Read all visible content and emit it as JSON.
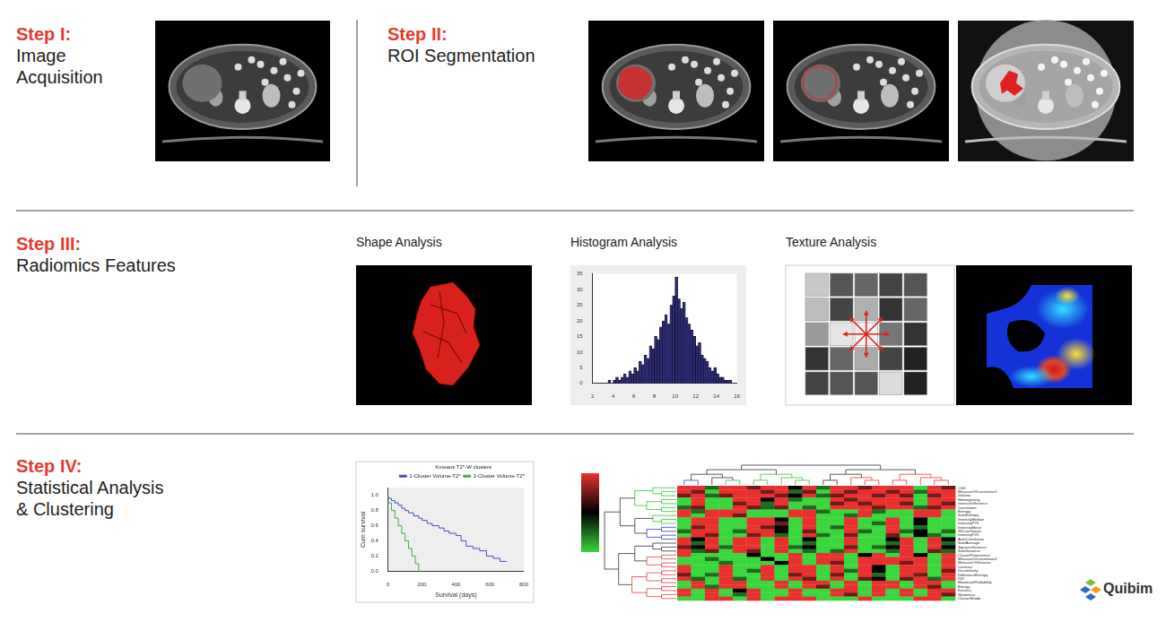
{
  "steps": [
    {
      "label": "Step I:",
      "title": [
        "Image",
        "Acquisition"
      ]
    },
    {
      "label": "Step II:",
      "title": [
        "ROI Segmentation"
      ]
    },
    {
      "label": "Step III:",
      "title": [
        "Radiomics Features"
      ]
    },
    {
      "label": "Step IV:",
      "title": [
        "Statistical Analysis",
        "& Clustering"
      ]
    }
  ],
  "feature_panels": [
    "Shape Analysis",
    "Histogram Analysis",
    "Texture Analysis"
  ],
  "chart_data": [
    {
      "type": "histogram",
      "bins": [
        3.5,
        3.75,
        4,
        4.25,
        4.5,
        4.75,
        5,
        5.25,
        5.5,
        5.75,
        6,
        6.25,
        6.5,
        6.75,
        7,
        7.25,
        7.5,
        7.75,
        8,
        8.25,
        8.5,
        8.75,
        9,
        9.25,
        9.5,
        9.75,
        10,
        10.25,
        10.5,
        10.75,
        11,
        11.25,
        11.5,
        11.75,
        12,
        12.25,
        12.5,
        12.75,
        13,
        13.25,
        13.5,
        13.75,
        14,
        14.25,
        14.5,
        14.75,
        15,
        15.25,
        15.5
      ],
      "counts": [
        1,
        0,
        1,
        2,
        1,
        2,
        3,
        2,
        4,
        3,
        5,
        4,
        7,
        6,
        9,
        8,
        12,
        11,
        15,
        14,
        18,
        20,
        22,
        19,
        25,
        28,
        34,
        27,
        24,
        26,
        21,
        19,
        17,
        15,
        12,
        13,
        9,
        8,
        7,
        5,
        4,
        5,
        3,
        2,
        2,
        1,
        1,
        1
      ],
      "color": "#2b2a72",
      "xlim": [
        2,
        16
      ],
      "xticks": [
        2,
        4,
        6,
        8,
        10,
        12,
        14,
        16
      ],
      "ylim": [
        0,
        35
      ],
      "yticks": [
        0,
        5,
        10,
        15,
        20,
        25,
        30,
        35
      ],
      "grid": false
    },
    {
      "type": "line",
      "title": "Kmeans T2*-W clusters",
      "x_label": "Survival (days)",
      "y_label": "Cum survival",
      "series": [
        {
          "name": "1-Cluster Volume-T2*",
          "color": "#4b4bc8",
          "line_style": "step",
          "marker": "none",
          "x": [
            0,
            20,
            40,
            60,
            80,
            100,
            120,
            150,
            180,
            200,
            230,
            260,
            300,
            330,
            360,
            400,
            430,
            460,
            500,
            540,
            580,
            620,
            660,
            700
          ],
          "values": [
            1,
            0.96,
            0.93,
            0.9,
            0.87,
            0.83,
            0.8,
            0.77,
            0.73,
            0.7,
            0.67,
            0.63,
            0.6,
            0.57,
            0.53,
            0.5,
            0.47,
            0.4,
            0.33,
            0.3,
            0.27,
            0.2,
            0.17,
            0.13
          ]
        },
        {
          "name": "2-Cluster Volume-T2*",
          "color": "#3cae3c",
          "line_style": "step",
          "marker": "none",
          "x": [
            0,
            20,
            40,
            60,
            80,
            100,
            120,
            140,
            160,
            180,
            200
          ],
          "values": [
            1,
            0.9,
            0.8,
            0.7,
            0.6,
            0.5,
            0.4,
            0.3,
            0.2,
            0.1,
            0
          ]
        }
      ],
      "xlim": [
        0,
        800
      ],
      "xticks": [
        0,
        200,
        400,
        600,
        800
      ],
      "ylim": [
        0,
        1.1
      ],
      "yticks": [
        {
          "value": 0,
          "label": "0.0"
        },
        {
          "value": 0.2,
          "label": "0.2"
        },
        {
          "value": 0.4,
          "label": "0.4"
        },
        {
          "value": 0.6,
          "label": "0.6"
        },
        {
          "value": 0.8,
          "label": "0.8"
        },
        {
          "value": 1,
          "label": "1.0"
        }
      ],
      "grid": false,
      "legend": "top-right"
    }
  ],
  "heatmap": {
    "rows": [
      "CSD",
      "MeasureOfCorrelation1",
      "Volume",
      "Homogeneity",
      "InverseDifference",
      "Correlation",
      "Entropy",
      "SumEntropy",
      "IntensityMedian",
      "IntensityP75",
      "IntensityMean",
      "3DCorrelation",
      "IntensityP25",
      "AutoCorrelation",
      "SumAverage",
      "SquaresVariance",
      "SumVariance",
      "ClusterProminence",
      "MeasureOfCorrelation2",
      "MeasureOfVariance",
      "Contrast",
      "Dissimilarity",
      "DifferenceEntropy",
      "IVD",
      "MaximumProbability",
      "Energy",
      "Kurtosis",
      "Skewness",
      "ClusterShade"
    ],
    "cells": [
      [
        2,
        2,
        -1,
        2,
        2,
        1,
        2,
        2,
        0,
        2,
        -1,
        2,
        2,
        1,
        2,
        2,
        2,
        -2,
        2,
        1
      ],
      [
        2,
        1,
        -2,
        2,
        2,
        2,
        1,
        2,
        -1,
        1,
        -2,
        2,
        1,
        2,
        2,
        1,
        2,
        -1,
        2,
        2
      ],
      [
        1,
        2,
        -1,
        1,
        2,
        2,
        2,
        1,
        0,
        2,
        -1,
        1,
        2,
        2,
        1,
        2,
        1,
        -2,
        1,
        2
      ],
      [
        -2,
        2,
        -2,
        -2,
        2,
        2,
        0,
        2,
        -1,
        -2,
        -2,
        2,
        1,
        2,
        2,
        2,
        2,
        -2,
        2,
        2
      ],
      [
        -2,
        2,
        -2,
        -2,
        1,
        2,
        -1,
        2,
        -2,
        -2,
        -2,
        1,
        2,
        1,
        2,
        2,
        1,
        -2,
        2,
        1
      ],
      [
        -1,
        1,
        -2,
        -2,
        2,
        1,
        -1,
        1,
        -2,
        -1,
        -2,
        2,
        2,
        2,
        1,
        2,
        2,
        -1,
        1,
        2
      ],
      [
        2,
        -1,
        2,
        2,
        2,
        -2,
        -2,
        -2,
        2,
        2,
        -1,
        -2,
        -2,
        2,
        -1,
        -2,
        -2,
        2,
        2,
        -2
      ],
      [
        2,
        -2,
        2,
        2,
        1,
        -2,
        -2,
        -2,
        2,
        2,
        -2,
        -2,
        -1,
        2,
        -2,
        -2,
        -2,
        2,
        2,
        -2
      ],
      [
        -2,
        2,
        2,
        -2,
        -2,
        2,
        2,
        0,
        -2,
        2,
        -2,
        -2,
        2,
        -2,
        -2,
        2,
        -2,
        0,
        -2,
        -2
      ],
      [
        -2,
        2,
        2,
        -2,
        -2,
        2,
        2,
        1,
        -2,
        2,
        -2,
        -2,
        2,
        -2,
        -1,
        2,
        -2,
        0,
        -2,
        -2
      ],
      [
        -2,
        1,
        2,
        -2,
        -2,
        2,
        1,
        0,
        -2,
        2,
        -2,
        -1,
        2,
        -2,
        -2,
        2,
        -2,
        -1,
        -2,
        -2
      ],
      [
        -1,
        2,
        2,
        -2,
        -1,
        2,
        2,
        0,
        -2,
        1,
        -2,
        -2,
        2,
        -1,
        -2,
        2,
        -1,
        0,
        -2,
        -1
      ],
      [
        -2,
        2,
        1,
        -2,
        -2,
        1,
        2,
        -1,
        -2,
        2,
        -1,
        -2,
        1,
        -2,
        -2,
        1,
        -2,
        0,
        -1,
        -2
      ],
      [
        2,
        0,
        2,
        -2,
        2,
        2,
        -2,
        2,
        -2,
        0,
        -2,
        -2,
        2,
        -2,
        -2,
        0,
        2,
        -2,
        2,
        0
      ],
      [
        2,
        -1,
        2,
        -2,
        2,
        2,
        -2,
        2,
        -2,
        -1,
        -2,
        -2,
        2,
        -2,
        -2,
        -1,
        2,
        -2,
        2,
        -1
      ],
      [
        1,
        0,
        2,
        -1,
        2,
        2,
        -2,
        2,
        -1,
        0,
        -2,
        -2,
        1,
        -2,
        -1,
        0,
        2,
        -2,
        2,
        0
      ],
      [
        2,
        -1,
        1,
        -2,
        2,
        1,
        -2,
        2,
        -2,
        -1,
        -2,
        -1,
        2,
        -2,
        -2,
        -1,
        2,
        -2,
        1,
        -1
      ],
      [
        2,
        -2,
        -2,
        -2,
        -2,
        0,
        -2,
        -2,
        2,
        -2,
        2,
        2,
        -2,
        0,
        2,
        -2,
        2,
        0,
        -2,
        2
      ],
      [
        -2,
        -2,
        -1,
        -2,
        -2,
        -2,
        0,
        -2,
        2,
        -2,
        2,
        2,
        -2,
        2,
        2,
        2,
        2,
        2,
        -2,
        2
      ],
      [
        -2,
        -2,
        -2,
        -1,
        -2,
        -2,
        -2,
        0,
        2,
        -2,
        2,
        1,
        -2,
        2,
        2,
        2,
        1,
        2,
        -2,
        2
      ],
      [
        2,
        -2,
        -2,
        2,
        -2,
        -2,
        2,
        -2,
        2,
        2,
        -2,
        2,
        -2,
        2,
        0,
        -2,
        2,
        2,
        -2,
        2
      ],
      [
        2,
        -2,
        -2,
        2,
        -2,
        -1,
        2,
        -2,
        2,
        2,
        -2,
        2,
        -1,
        2,
        0,
        -2,
        2,
        2,
        -2,
        1
      ],
      [
        1,
        -2,
        -1,
        2,
        -2,
        -2,
        2,
        -2,
        1,
        2,
        -2,
        1,
        -2,
        2,
        -1,
        -2,
        2,
        1,
        -2,
        2
      ],
      [
        2,
        -1,
        -2,
        2,
        -1,
        -2,
        2,
        -2,
        2,
        1,
        -2,
        2,
        -2,
        1,
        0,
        -2,
        1,
        2,
        -1,
        2
      ],
      [
        -2,
        2,
        -2,
        2,
        2,
        -2,
        -2,
        2,
        -2,
        2,
        2,
        -2,
        2,
        -2,
        2,
        2,
        -2,
        2,
        2,
        -2
      ],
      [
        -2,
        2,
        -1,
        2,
        2,
        -2,
        -2,
        2,
        -2,
        2,
        1,
        -2,
        2,
        -2,
        2,
        2,
        -2,
        2,
        1,
        -2
      ],
      [
        2,
        -2,
        2,
        -2,
        0,
        2,
        -2,
        -2,
        2,
        -2,
        -2,
        2,
        2,
        -2,
        2,
        -2,
        2,
        -2,
        2,
        2
      ],
      [
        2,
        -2,
        2,
        -2,
        -1,
        2,
        -2,
        -2,
        2,
        -2,
        -2,
        2,
        1,
        -2,
        2,
        -2,
        2,
        -2,
        2,
        1
      ],
      [
        -2,
        -2,
        2,
        2,
        -2,
        2,
        -2,
        2,
        2,
        2,
        -2,
        -2,
        -2,
        2,
        -2,
        -2,
        -2,
        2,
        2,
        -2
      ]
    ],
    "color_range": [
      -2,
      2
    ],
    "colors": [
      "#39d63c",
      "#000000",
      "#e8312f"
    ]
  },
  "logo": "Quibim"
}
